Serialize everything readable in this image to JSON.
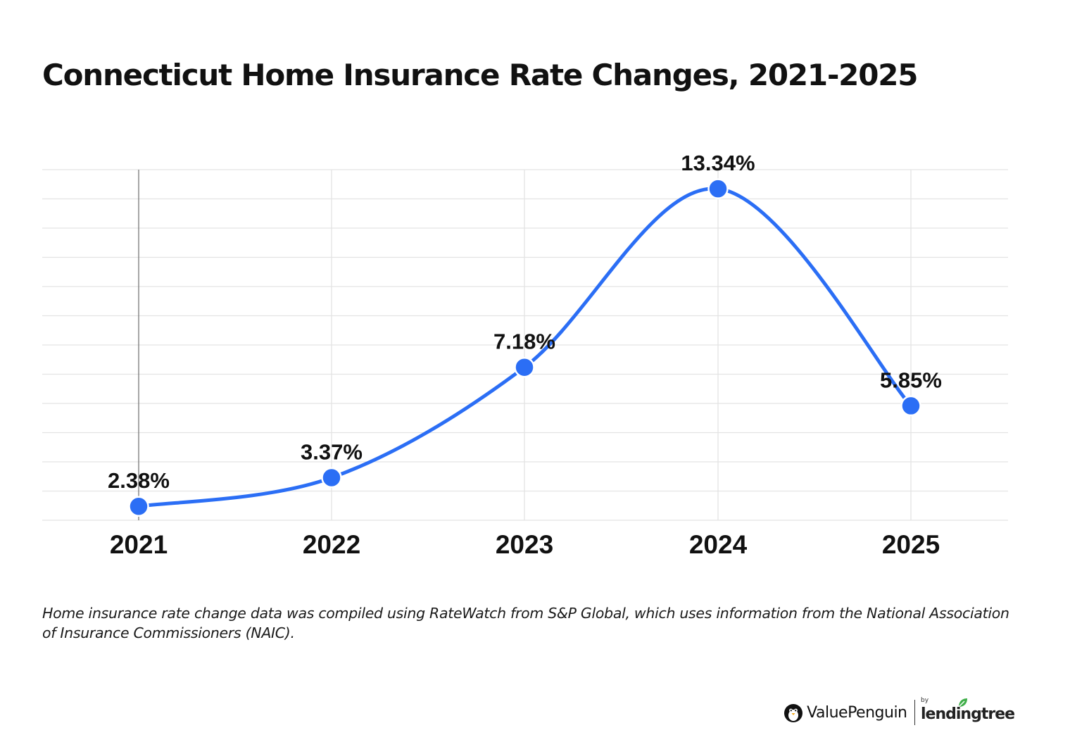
{
  "title": "Connecticut Home Insurance Rate Changes, 2021-2025",
  "chart_data": {
    "type": "line",
    "smooth": true,
    "categories": [
      "2021",
      "2022",
      "2023",
      "2024",
      "2025"
    ],
    "values": [
      2.38,
      3.37,
      7.18,
      13.34,
      5.85
    ],
    "data_labels": [
      "2.38%",
      "3.37%",
      "7.18%",
      "13.34%",
      "5.85%"
    ],
    "ylim": [
      1.9,
      14.0
    ],
    "grid": true,
    "line_color": "#2B6EF5",
    "gridline_color": "#E3E3E3"
  },
  "footnote": "Home insurance rate change data was compiled using RateWatch from S&P Global, which uses information from the National Association of Insurance Commissioners (NAIC).",
  "brand": {
    "primary": "ValuePenguin",
    "by": "by",
    "secondary": "lendingtree",
    "primary_icon": "penguin-icon",
    "secondary_icon": "leaf-icon",
    "secondary_color": "#3FAE49"
  }
}
